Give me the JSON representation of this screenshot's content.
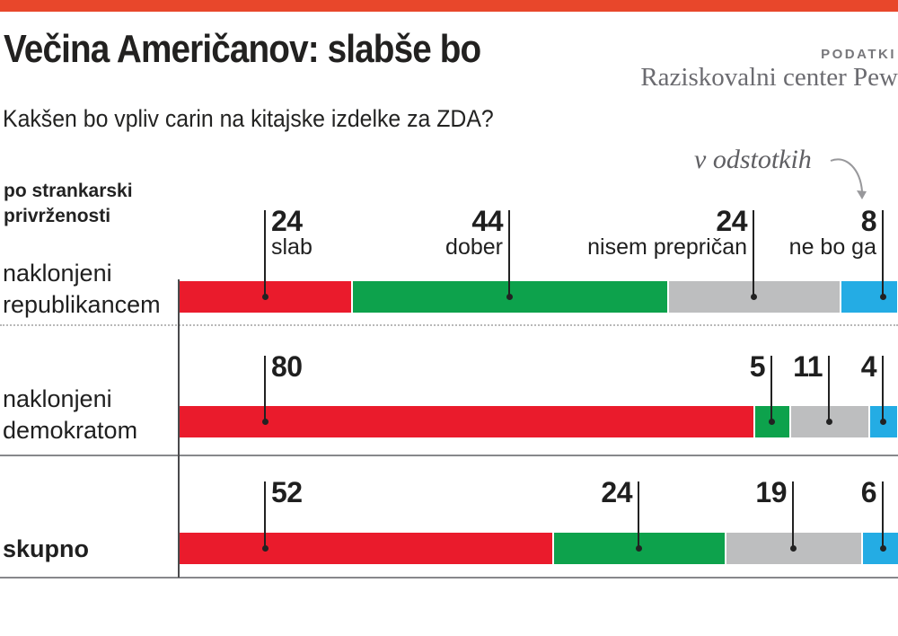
{
  "accent": {
    "top_bar_color": "#e8472b"
  },
  "header": {
    "title": "Večina Američanov: slabše bo",
    "data_source_label": "PODATKI",
    "data_source_name": "Raziskovalni center Pew",
    "subtitle": "Kakšen bo vpliv carin na kitajske izdelke za ZDA?",
    "units_note": "v odstotkih"
  },
  "section_label": {
    "line1": "po strankarski",
    "line2": "privrženosti"
  },
  "chart_data": {
    "type": "bar",
    "stacked": true,
    "orientation": "horizontal",
    "unit": "percent",
    "xlim": [
      0,
      100
    ],
    "grid": false,
    "legend_position": "above-first-row",
    "categories": [
      [
        "naklonjeni",
        "republikancem"
      ],
      [
        "naklonjeni",
        "demokratom"
      ],
      [
        "skupno"
      ]
    ],
    "legend": [
      "slab",
      "dober",
      "nisem prepričan",
      "ne bo ga"
    ],
    "series": [
      {
        "name": "slab",
        "color": "#ea1b2c",
        "values": [
          24,
          80,
          52
        ]
      },
      {
        "name": "dober",
        "color": "#0da24c",
        "values": [
          44,
          5,
          24
        ]
      },
      {
        "name": "nisem prepričan",
        "color": "#bdbebf",
        "values": [
          24,
          11,
          19
        ]
      },
      {
        "name": "ne bo ga",
        "color": "#24ace4",
        "values": [
          8,
          4,
          6
        ]
      }
    ]
  }
}
